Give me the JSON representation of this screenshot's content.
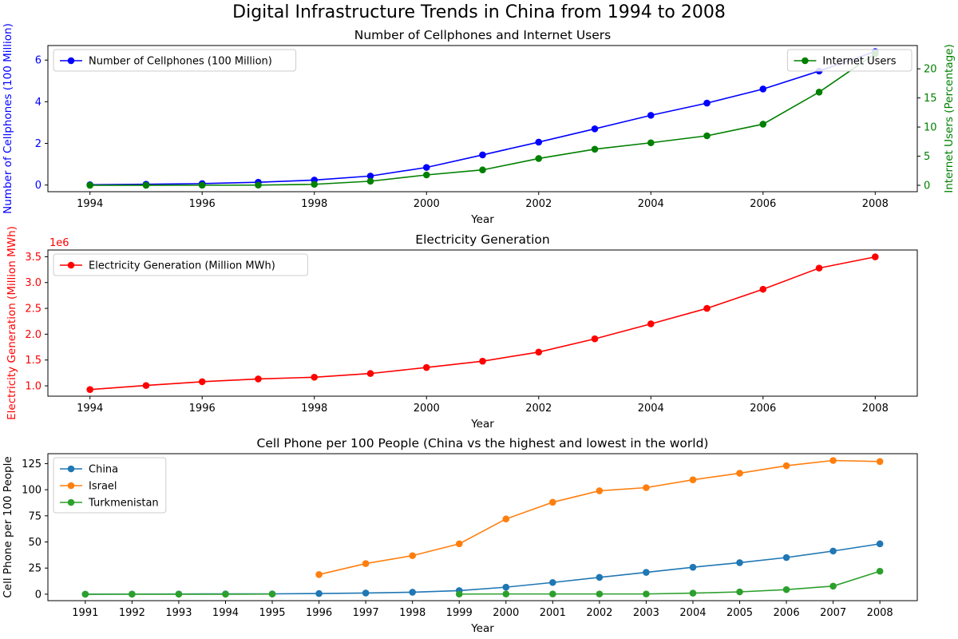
{
  "figure": {
    "title": "Digital Infrastructure Trends in China from 1994 to 2008"
  },
  "colors": {
    "blue": "#0000ff",
    "green": "#008000",
    "red": "#ff0000",
    "c_china": "#1f77b4",
    "c_israel": "#ff7f0e",
    "c_turkmenistan": "#2ca02c"
  },
  "chart_data": [
    {
      "type": "line",
      "title": "Number of Cellphones and Internet Users",
      "xlabel": "Year",
      "ylabel": "Number of Cellphones (100 Million)",
      "y2label": "Internet Users (Percentage)",
      "x": [
        1994,
        1995,
        1996,
        1997,
        1998,
        1999,
        2000,
        2001,
        2002,
        2003,
        2004,
        2005,
        2006,
        2007,
        2008
      ],
      "xticks": [
        1994,
        1996,
        1998,
        2000,
        2002,
        2004,
        2006,
        2008
      ],
      "xlim": [
        1993.25,
        2008.75
      ],
      "ylim": [
        -0.32,
        6.7
      ],
      "yticks": [
        0,
        2,
        4,
        6
      ],
      "y2lim": [
        -1.1,
        24.0
      ],
      "y2ticks": [
        0,
        5,
        10,
        15,
        20
      ],
      "legend_left": "upper left",
      "legend_right": "upper right",
      "series": [
        {
          "name": "Number of Cellphones (100 Million)",
          "axis": "left",
          "color": "#0000ff",
          "values": [
            0.0157,
            0.0363,
            0.0685,
            0.1323,
            0.2386,
            0.433,
            0.8453,
            1.4481,
            2.0601,
            2.6995,
            3.3482,
            3.9341,
            4.6106,
            5.4728,
            6.4124
          ]
        },
        {
          "name": "Internet Users",
          "axis": "right",
          "color": "#008000",
          "values": [
            0.0013,
            0.0049,
            0.0132,
            0.0325,
            0.17,
            0.7,
            1.78,
            2.64,
            4.6,
            6.2,
            7.3,
            8.5,
            10.5,
            16.0,
            22.6
          ]
        }
      ]
    },
    {
      "type": "line",
      "title": "Electricity Generation",
      "xlabel": "Year",
      "ylabel": "Electricity Generation (Million MWh)",
      "offset_label": "1e6",
      "x": [
        1994,
        1995,
        1996,
        1997,
        1998,
        1999,
        2000,
        2001,
        2002,
        2003,
        2004,
        2005,
        2006,
        2007,
        2008
      ],
      "xticks": [
        1994,
        1996,
        1998,
        2000,
        2002,
        2004,
        2006,
        2008
      ],
      "xlim": [
        1993.25,
        2008.75
      ],
      "ylim": [
        0.8,
        3.63
      ],
      "yticks": [
        1.0,
        1.5,
        2.0,
        2.5,
        3.0,
        3.5
      ],
      "ytick_labels": [
        "1.0",
        "1.5",
        "2.0",
        "2.5",
        "3.0",
        "3.5"
      ],
      "legend": "upper left",
      "series": [
        {
          "name": "Electricity Generation (Million MWh)",
          "color": "#ff0000",
          "values": [
            0.928,
            1.007,
            1.08,
            1.134,
            1.167,
            1.239,
            1.356,
            1.478,
            1.654,
            1.91,
            2.2,
            2.5,
            2.87,
            3.28,
            3.497
          ]
        }
      ]
    },
    {
      "type": "line",
      "title": "Cell Phone per 100 People (China vs the highest and lowest in the world)",
      "xlabel": "Year",
      "ylabel": "Cell Phone per 100 People",
      "x": [
        1991,
        1992,
        1993,
        1994,
        1995,
        1996,
        1997,
        1998,
        1999,
        2000,
        2001,
        2002,
        2003,
        2004,
        2005,
        2006,
        2007,
        2008
      ],
      "xticks": [
        1991,
        1992,
        1993,
        1994,
        1995,
        1996,
        1997,
        1998,
        1999,
        2000,
        2001,
        2002,
        2003,
        2004,
        2005,
        2006,
        2007,
        2008
      ],
      "xlim": [
        1990.2,
        2008.8
      ],
      "ylim": [
        -6.2,
        134.5
      ],
      "yticks": [
        0,
        25,
        50,
        75,
        100,
        125
      ],
      "legend": "upper left",
      "series": [
        {
          "name": "China",
          "color": "#1f77b4",
          "values": [
            0.0,
            0.1,
            0.2,
            0.3,
            0.3,
            0.6,
            1.1,
            1.9,
            3.4,
            6.7,
            11.2,
            16.1,
            20.9,
            25.8,
            30.2,
            35.1,
            41.3,
            48.2
          ]
        },
        {
          "name": "Israel",
          "color": "#ff7f0e",
          "values": [
            null,
            null,
            null,
            null,
            null,
            18.8,
            29.3,
            36.9,
            48.2,
            72.0,
            88.0,
            99.0,
            102.0,
            109.5,
            115.8,
            123.0,
            128.0,
            127.0
          ]
        },
        {
          "name": "Turkmenistan",
          "color": "#2ca02c",
          "values": [
            0.0,
            0.0,
            0.0,
            0.0,
            0.1,
            null,
            null,
            null,
            0.1,
            0.2,
            0.2,
            0.2,
            0.2,
            1.0,
            2.2,
            4.4,
            7.7,
            22.0
          ]
        }
      ]
    }
  ]
}
